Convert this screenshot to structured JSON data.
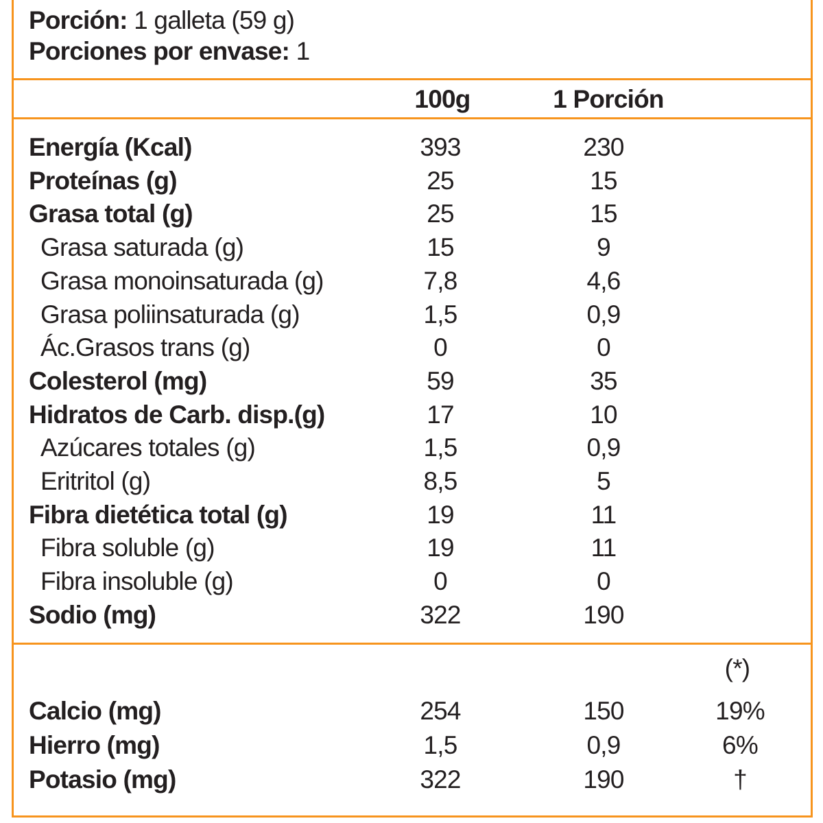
{
  "header": {
    "serving_label": "Porción:",
    "serving_value": "1 galleta (59 g)",
    "servings_label": "Porciones por envase:",
    "servings_value": "1"
  },
  "table": {
    "columns": [
      "100g",
      "1 Porción"
    ],
    "rows": [
      {
        "label": "Energía (Kcal)",
        "bold": true,
        "per100": "393",
        "portion": "230"
      },
      {
        "label": "Proteínas (g)",
        "bold": true,
        "per100": "25",
        "portion": "15"
      },
      {
        "label": "Grasa total (g)",
        "bold": true,
        "per100": "25",
        "portion": "15"
      },
      {
        "label": "Grasa saturada (g)",
        "bold": false,
        "per100": "15",
        "portion": "9"
      },
      {
        "label": "Grasa monoinsaturada (g)",
        "bold": false,
        "per100": "7,8",
        "portion": "4,6"
      },
      {
        "label": "Grasa poliinsaturada (g)",
        "bold": false,
        "per100": "1,5",
        "portion": "0,9"
      },
      {
        "label": "Ác.Grasos trans (g)",
        "bold": false,
        "per100": "0",
        "portion": "0"
      },
      {
        "label": "Colesterol (mg)",
        "bold": true,
        "per100": "59",
        "portion": "35"
      },
      {
        "label": "Hidratos de Carb. disp.(g)",
        "bold": true,
        "per100": "17",
        "portion": "10"
      },
      {
        "label": "Azúcares totales (g)",
        "bold": false,
        "per100": "1,5",
        "portion": "0,9"
      },
      {
        "label": "Eritritol (g)",
        "bold": false,
        "per100": "8,5",
        "portion": "5"
      },
      {
        "label": "Fibra dietética total (g)",
        "bold": true,
        "per100": "19",
        "portion": "11"
      },
      {
        "label": "Fibra soluble (g)",
        "bold": false,
        "per100": "19",
        "portion": "11"
      },
      {
        "label": "Fibra insoluble (g)",
        "bold": false,
        "per100": "0",
        "portion": "0"
      },
      {
        "label": "Sodio (mg)",
        "bold": true,
        "per100": "322",
        "portion": "190"
      }
    ]
  },
  "minerals": {
    "note": "(*)",
    "rows": [
      {
        "label": "Calcio (mg)",
        "per100": "254",
        "portion": "150",
        "dv": "19%"
      },
      {
        "label": "Hierro (mg)",
        "per100": "1,5",
        "portion": "0,9",
        "dv": "6%"
      },
      {
        "label": "Potasio (mg)",
        "per100": "322",
        "portion": "190",
        "dv": "†"
      }
    ]
  }
}
